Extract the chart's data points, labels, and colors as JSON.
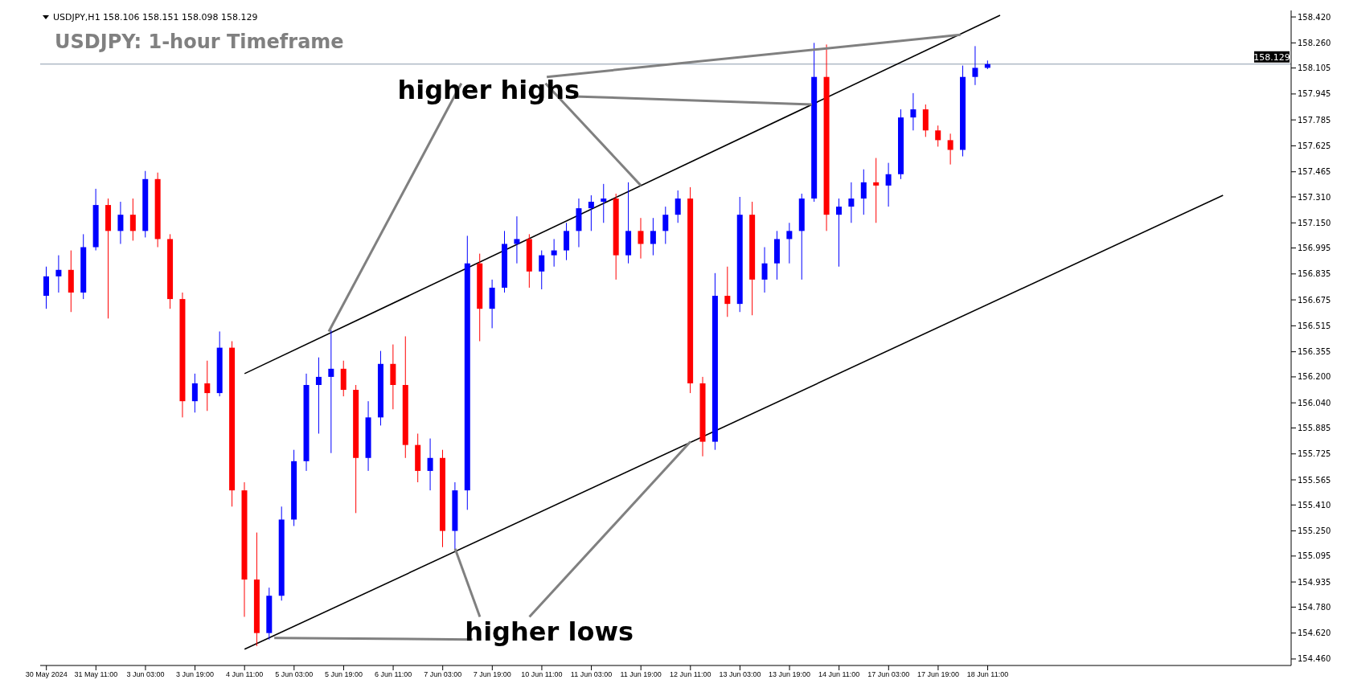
{
  "chart_data": {
    "type": "candlestick",
    "title": "USDJPY: 1-hour Timeframe",
    "subtitle": "USDJPY,H1  158.106 158.151 158.098 158.129",
    "categories": [
      "30 May 2024",
      null,
      null,
      null,
      "31 May 11:00",
      null,
      null,
      null,
      "3 Jun 03:00",
      null,
      null,
      null,
      "3 Jun 19:00",
      null,
      null,
      null,
      "4 Jun 11:00",
      null,
      null,
      null,
      "5 Jun 03:00",
      null,
      null,
      null,
      "5 Jun 19:00",
      null,
      null,
      null,
      "6 Jun 11:00",
      null,
      null,
      null,
      "7 Jun 03:00",
      null,
      null,
      null,
      "7 Jun 19:00",
      null,
      null,
      null,
      "10 Jun 11:00",
      null,
      null,
      null,
      "11 Jun 03:00",
      null,
      null,
      null,
      "11 Jun 19:00",
      null,
      null,
      null,
      "12 Jun 11:00",
      null,
      null,
      null,
      "13 Jun 03:00",
      null,
      null,
      null,
      "13 Jun 19:00",
      null,
      null,
      null,
      "14 Jun 11:00",
      null,
      null,
      null,
      "17 Jun 03:00",
      null,
      null,
      null,
      "17 Jun 19:00",
      null,
      null,
      null,
      "18 Jun 11:00",
      null,
      null,
      null,
      null,
      null,
      null,
      null,
      null,
      null,
      null,
      null,
      null,
      null,
      null,
      null,
      null,
      null,
      null,
      null,
      null,
      null,
      null,
      null,
      null
    ],
    "ohlc": [
      [
        156.7,
        156.88,
        156.62,
        156.82
      ],
      [
        156.82,
        156.95,
        156.72,
        156.86
      ],
      [
        156.86,
        156.98,
        156.6,
        156.72
      ],
      [
        156.72,
        157.08,
        156.68,
        157.0
      ],
      [
        157.0,
        157.36,
        156.98,
        157.26
      ],
      [
        157.26,
        157.3,
        156.56,
        157.1
      ],
      [
        157.1,
        157.28,
        157.02,
        157.2
      ],
      [
        157.2,
        157.3,
        157.04,
        157.1
      ],
      [
        157.1,
        157.47,
        157.06,
        157.42
      ],
      [
        157.42,
        157.46,
        157.0,
        157.05
      ],
      [
        157.05,
        157.08,
        156.62,
        156.68
      ],
      [
        156.68,
        156.72,
        155.95,
        156.05
      ],
      [
        156.05,
        156.22,
        155.98,
        156.16
      ],
      [
        156.16,
        156.3,
        155.99,
        156.1
      ],
      [
        156.1,
        156.48,
        156.08,
        156.38
      ],
      [
        156.38,
        156.42,
        155.4,
        155.5
      ],
      [
        155.5,
        155.55,
        154.72,
        154.95
      ],
      [
        154.95,
        155.24,
        154.54,
        154.62
      ],
      [
        154.62,
        154.9,
        154.58,
        154.85
      ],
      [
        154.85,
        155.4,
        154.82,
        155.32
      ],
      [
        155.32,
        155.75,
        155.28,
        155.68
      ],
      [
        155.68,
        156.22,
        155.62,
        156.15
      ],
      [
        156.15,
        156.32,
        155.85,
        156.2
      ],
      [
        156.2,
        156.49,
        155.73,
        156.25
      ],
      [
        156.25,
        156.3,
        156.08,
        156.12
      ],
      [
        156.12,
        156.15,
        155.36,
        155.7
      ],
      [
        155.7,
        156.05,
        155.62,
        155.95
      ],
      [
        155.95,
        156.36,
        155.9,
        156.28
      ],
      [
        156.28,
        156.4,
        156.0,
        156.15
      ],
      [
        156.15,
        156.45,
        155.7,
        155.78
      ],
      [
        155.78,
        155.85,
        155.55,
        155.62
      ],
      [
        155.62,
        155.82,
        155.5,
        155.7
      ],
      [
        155.7,
        155.75,
        155.15,
        155.25
      ],
      [
        155.25,
        155.55,
        155.13,
        155.5
      ],
      [
        155.5,
        157.07,
        155.38,
        156.9
      ],
      [
        156.9,
        156.96,
        156.42,
        156.62
      ],
      [
        156.62,
        156.8,
        156.5,
        156.75
      ],
      [
        156.75,
        157.1,
        156.72,
        157.02
      ],
      [
        157.02,
        157.19,
        156.9,
        157.05
      ],
      [
        157.05,
        157.08,
        156.75,
        156.85
      ],
      [
        156.85,
        156.98,
        156.74,
        156.95
      ],
      [
        156.95,
        157.05,
        156.88,
        156.98
      ],
      [
        156.98,
        157.15,
        156.92,
        157.1
      ],
      [
        157.1,
        157.3,
        157.0,
        157.24
      ],
      [
        157.24,
        157.32,
        157.1,
        157.28
      ],
      [
        157.28,
        157.39,
        157.15,
        157.3
      ],
      [
        157.3,
        157.33,
        156.8,
        156.95
      ],
      [
        156.95,
        157.4,
        156.9,
        157.1
      ],
      [
        157.1,
        157.18,
        156.93,
        157.02
      ],
      [
        157.02,
        157.18,
        156.95,
        157.1
      ],
      [
        157.1,
        157.25,
        157.02,
        157.2
      ],
      [
        157.2,
        157.35,
        157.15,
        157.3
      ],
      [
        157.3,
        157.37,
        156.1,
        156.16
      ],
      [
        156.16,
        156.2,
        155.71,
        155.8
      ],
      [
        155.8,
        156.84,
        155.75,
        156.7
      ],
      [
        156.7,
        156.88,
        156.57,
        156.65
      ],
      [
        156.65,
        157.31,
        156.6,
        157.2
      ],
      [
        157.2,
        157.28,
        156.58,
        156.8
      ],
      [
        156.8,
        157.0,
        156.72,
        156.9
      ],
      [
        156.9,
        157.1,
        156.8,
        157.05
      ],
      [
        157.05,
        157.15,
        156.9,
        157.1
      ],
      [
        157.1,
        157.33,
        156.8,
        157.3
      ],
      [
        157.3,
        158.26,
        157.28,
        158.05
      ],
      [
        158.05,
        158.25,
        157.1,
        157.2
      ],
      [
        157.2,
        157.3,
        156.88,
        157.25
      ],
      [
        157.25,
        157.4,
        157.15,
        157.3
      ],
      [
        157.3,
        157.48,
        157.2,
        157.4
      ],
      [
        157.4,
        157.55,
        157.15,
        157.38
      ],
      [
        157.38,
        157.52,
        157.25,
        157.45
      ],
      [
        157.45,
        157.85,
        157.42,
        157.8
      ],
      [
        157.8,
        157.95,
        157.72,
        157.85
      ],
      [
        157.85,
        157.88,
        157.68,
        157.72
      ],
      [
        157.72,
        157.75,
        157.62,
        157.66
      ],
      [
        157.66,
        157.7,
        157.51,
        157.6
      ],
      [
        157.6,
        158.12,
        157.56,
        158.05
      ],
      [
        158.05,
        158.24,
        158.0,
        158.106
      ],
      [
        158.106,
        158.151,
        158.098,
        158.129
      ],
      null,
      null,
      null,
      null,
      null,
      null,
      null,
      null,
      null,
      null,
      null,
      null,
      null,
      null,
      null,
      null,
      null,
      null,
      null,
      null,
      null,
      null,
      null,
      null
    ],
    "colors": [
      "#0000ff",
      "#0000ff",
      "#ff0000",
      "#0000ff",
      "#0000ff",
      "#ff0000",
      "#0000ff",
      "#ff0000",
      "#0000ff",
      "#ff0000",
      "#ff0000",
      "#ff0000",
      "#0000ff",
      "#ff0000",
      "#0000ff",
      "#ff0000",
      "#ff0000",
      "#ff0000",
      "#0000ff",
      "#0000ff",
      "#0000ff",
      "#0000ff",
      "#0000ff",
      "#0000ff",
      "#ff0000",
      "#ff0000",
      "#0000ff",
      "#0000ff",
      "#ff0000",
      "#ff0000",
      "#ff0000",
      "#0000ff",
      "#ff0000",
      "#0000ff",
      "#0000ff",
      "#ff0000",
      "#0000ff",
      "#0000ff",
      "#0000ff",
      "#ff0000",
      "#0000ff",
      "#0000ff",
      "#0000ff",
      "#0000ff",
      "#0000ff",
      "#0000ff",
      "#ff0000",
      "#0000ff",
      "#ff0000",
      "#0000ff",
      "#0000ff",
      "#0000ff",
      "#ff0000",
      "#ff0000",
      "#0000ff",
      "#ff0000",
      "#0000ff",
      "#ff0000",
      "#0000ff",
      "#0000ff",
      "#0000ff",
      "#0000ff",
      "#0000ff",
      "#ff0000",
      "#0000ff",
      "#0000ff",
      "#0000ff",
      "#ff0000",
      "#0000ff",
      "#0000ff",
      "#0000ff",
      "#ff0000",
      "#ff0000",
      "#ff0000",
      "#0000ff",
      "#0000ff",
      "#0000ff",
      null,
      null,
      null,
      null,
      null,
      null,
      null,
      null,
      null,
      null,
      null,
      null,
      null,
      null,
      null,
      null,
      null,
      null,
      null,
      null,
      null,
      null,
      null,
      null
    ],
    "series": [
      {
        "type": "line",
        "color": "#000000",
        "values": [
          null,
          null,
          null,
          null,
          null,
          null,
          null,
          null,
          null,
          null,
          null,
          null,
          null,
          null,
          null,
          null,
          156.22,
          null,
          null,
          null,
          null,
          null,
          null,
          null,
          null,
          null,
          null,
          null,
          null,
          null,
          null,
          null,
          null,
          null,
          null,
          null,
          null,
          null,
          null,
          null,
          null,
          null,
          null,
          null,
          null,
          null,
          null,
          null,
          null,
          null,
          null,
          null,
          null,
          null,
          null,
          null,
          null,
          null,
          null,
          null,
          null,
          null,
          null,
          null,
          null,
          null,
          null,
          null,
          null,
          null,
          null,
          null,
          null,
          null,
          null,
          null,
          null,
          158.43,
          null,
          null,
          null,
          null,
          null,
          null,
          null,
          null,
          null,
          null,
          null,
          null,
          null,
          null,
          null,
          null,
          null,
          null,
          null,
          null,
          null,
          null,
          null
        ]
      },
      {
        "type": "line",
        "color": "#000000",
        "values": [
          null,
          null,
          null,
          null,
          null,
          null,
          null,
          null,
          null,
          null,
          null,
          null,
          null,
          null,
          null,
          null,
          154.52,
          null,
          null,
          null,
          null,
          null,
          null,
          null,
          null,
          null,
          null,
          null,
          null,
          null,
          null,
          null,
          null,
          null,
          null,
          null,
          null,
          null,
          null,
          null,
          null,
          null,
          null,
          null,
          null,
          null,
          null,
          null,
          null,
          null,
          null,
          null,
          null,
          null,
          null,
          null,
          null,
          null,
          null,
          null,
          null,
          null,
          null,
          null,
          null,
          null,
          null,
          null,
          null,
          null,
          null,
          null,
          null,
          null,
          null,
          null,
          null,
          null,
          null,
          null,
          null,
          null,
          null,
          null,
          null,
          null,
          null,
          null,
          null,
          null,
          null,
          null,
          null,
          null,
          null,
          157.32,
          null,
          null,
          null,
          null,
          null
        ]
      }
    ],
    "ylim": [
      154.42,
      158.46
    ],
    "yticks": [
      {
        "value": 154.46,
        "label": "154.460"
      },
      {
        "value": 154.62,
        "label": "154.620"
      },
      {
        "value": 154.78,
        "label": "154.780"
      },
      {
        "value": 154.935,
        "label": "154.935"
      },
      {
        "value": 155.095,
        "label": "155.095"
      },
      {
        "value": 155.25,
        "label": "155.250"
      },
      {
        "value": 155.41,
        "label": "155.410"
      },
      {
        "value": 155.565,
        "label": "155.565"
      },
      {
        "value": 155.725,
        "label": "155.725"
      },
      {
        "value": 155.885,
        "label": "155.885"
      },
      {
        "value": 156.04,
        "label": "156.040"
      },
      {
        "value": 156.2,
        "label": "156.200"
      },
      {
        "value": 156.355,
        "label": "156.355"
      },
      {
        "value": 156.515,
        "label": "156.515"
      },
      {
        "value": 156.675,
        "label": "156.675"
      },
      {
        "value": 156.835,
        "label": "156.835"
      },
      {
        "value": 156.995,
        "label": "156.995"
      },
      {
        "value": 157.15,
        "label": "157.150"
      },
      {
        "value": 157.31,
        "label": "157.310"
      },
      {
        "value": 157.465,
        "label": "157.465"
      },
      {
        "value": 157.625,
        "label": "157.625"
      },
      {
        "value": 157.785,
        "label": "157.785"
      },
      {
        "value": 157.945,
        "label": "157.945"
      },
      {
        "value": 158.105,
        "label": "158.105"
      },
      {
        "value": 158.26,
        "label": "158.260"
      },
      {
        "value": 158.42,
        "label": "158.420"
      }
    ],
    "ref_lines": [
      {
        "axis": "y",
        "value": 158.129,
        "label": "158.129",
        "color": "#8a9bab"
      }
    ],
    "annotations": [
      {
        "text": "higher highs",
        "x": "11 Jun 19:00",
        "y": 157.38
      },
      {
        "text": "higher lows",
        "x": "12 Jun 11:00",
        "y": 155.8
      }
    ]
  }
}
